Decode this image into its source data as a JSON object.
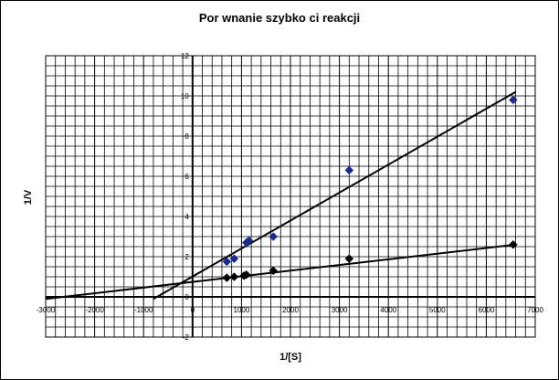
{
  "chart_data": {
    "type": "scatter",
    "title": "Por  wnanie szybko  ci reakcji",
    "xlabel": "1/[S]",
    "ylabel": "1/V",
    "xlim": [
      -3000,
      7000
    ],
    "ylim": [
      -2,
      12
    ],
    "x_ticks": [
      "-3000",
      "-2000",
      "-1000",
      "0",
      "1000",
      "2000",
      "3000",
      "4000",
      "5000",
      "6000",
      "7000"
    ],
    "y_ticks": [
      "-2",
      "0",
      "2",
      "4",
      "6",
      "8",
      "10",
      "12"
    ],
    "grid": true,
    "legend": "none",
    "series": [
      {
        "color": "#1a2a8c",
        "marker": "diamond",
        "points": [
          [
            700,
            1.75
          ],
          [
            850,
            1.9
          ],
          [
            1100,
            2.7
          ],
          [
            1150,
            2.8
          ],
          [
            1650,
            3.0
          ],
          [
            3200,
            6.3
          ],
          [
            6550,
            9.8
          ]
        ],
        "trendline": [
          [
            -800,
            -0.1
          ],
          [
            6600,
            10.2
          ]
        ]
      },
      {
        "color": "#000000",
        "marker": "diamond",
        "points": [
          [
            700,
            0.95
          ],
          [
            850,
            1.0
          ],
          [
            1050,
            1.05
          ],
          [
            1100,
            1.1
          ],
          [
            1650,
            1.3
          ],
          [
            3200,
            1.9
          ],
          [
            6550,
            2.6
          ]
        ],
        "trendline": [
          [
            -3000,
            -0.1
          ],
          [
            6600,
            2.6
          ]
        ]
      }
    ]
  }
}
